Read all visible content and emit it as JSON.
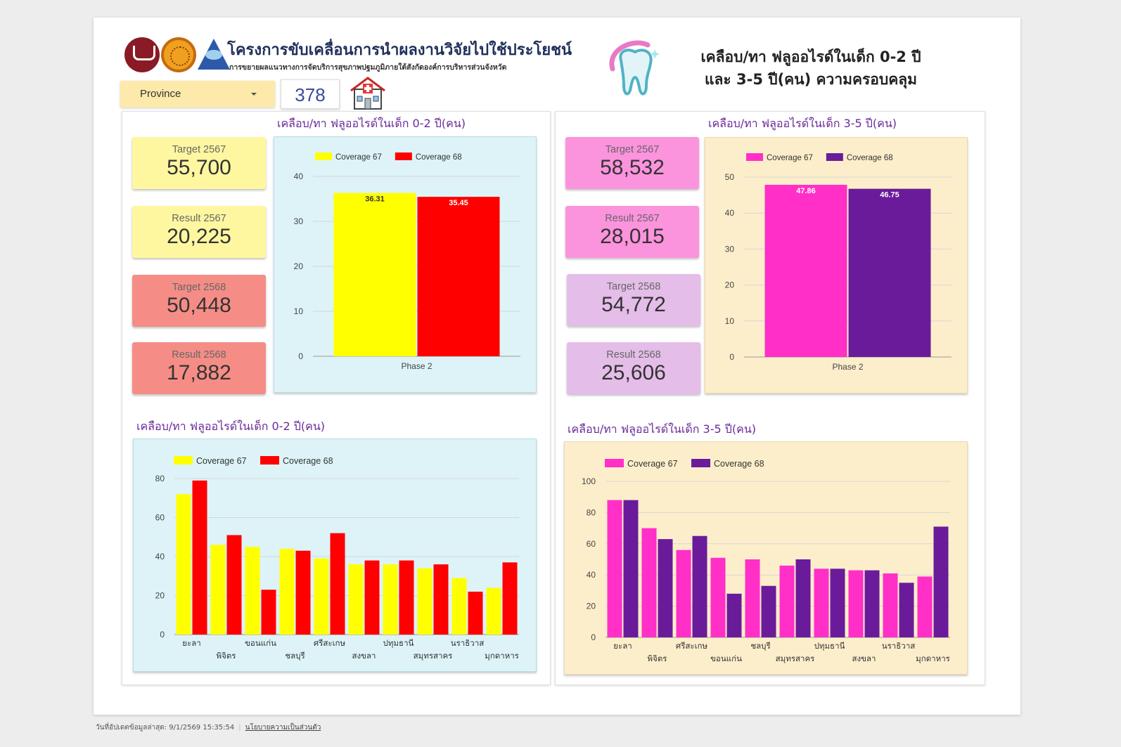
{
  "header": {
    "project_title": "โครงการขับเคลื่อนการนำผลงานวิจัยไปใช้ประโยชน์",
    "project_subtitle": "การขยายผลแนวทางการจัดบริการสุขภาพปฐมภูมิภายใต้สังกัดองค์การบริหารส่วนจังหวัด",
    "main_title_line1": "เคลือบ/ทา ฟลูออไรด์ในเด็ก 0-2 ปี",
    "main_title_line2": "และ 3-5 ปี(คน) ความครอบคลุม",
    "province_label": "Province",
    "count": "378"
  },
  "left_panel": {
    "title": "เคลือบ/ทา ฟลูออไรด์ในเด็ก 0-2 ปี(คน)",
    "cards": [
      {
        "label": "Target 2567",
        "value": "55,700"
      },
      {
        "label": "Result 2567",
        "value": "20,225"
      },
      {
        "label": "Target 2568",
        "value": "50,448"
      },
      {
        "label": "Result 2568",
        "value": "17,882"
      }
    ],
    "bottom_title": "เคลือบ/ทา ฟลูออไรด์ในเด็ก 0-2 ปี(คน)"
  },
  "right_panel": {
    "title": "เคลือบ/ทา ฟลูออไรด์ในเด็ก 3-5 ปี(คน)",
    "cards": [
      {
        "label": "Target 2567",
        "value": "58,532"
      },
      {
        "label": "Result 2567",
        "value": "28,015"
      },
      {
        "label": "Target 2568",
        "value": "54,772"
      },
      {
        "label": "Result 2568",
        "value": "25,606"
      }
    ],
    "bottom_title": "เคลือบ/ทา ฟลูออไรด์ในเด็ก 3-5 ปี(คน)"
  },
  "chart_data": [
    {
      "id": "summary_0_2",
      "type": "bar",
      "categories": [
        "Phase 2"
      ],
      "series": [
        {
          "name": "Coverage 67",
          "color": "#ffff00",
          "values": [
            36.31
          ]
        },
        {
          "name": "Coverage 68",
          "color": "#ff0000",
          "values": [
            35.45
          ]
        }
      ],
      "data_labels": [
        "36.31",
        "35.45"
      ],
      "ylim": [
        0,
        40
      ],
      "yticks": [
        0,
        10,
        20,
        30,
        40
      ],
      "legend": "top"
    },
    {
      "id": "summary_3_5",
      "type": "bar",
      "categories": [
        "Phase 2"
      ],
      "series": [
        {
          "name": "Coverage 67",
          "color": "#ff2fc8",
          "values": [
            47.86
          ]
        },
        {
          "name": "Coverage 68",
          "color": "#6a1b9a",
          "values": [
            46.75
          ]
        }
      ],
      "data_labels": [
        "47.86",
        "46.75"
      ],
      "ylim": [
        0,
        50
      ],
      "yticks": [
        0,
        10,
        20,
        30,
        40,
        50
      ],
      "legend": "top"
    },
    {
      "id": "province_0_2",
      "type": "bar",
      "categories": [
        "ยะลา",
        "พิจิตร",
        "ขอนแก่น",
        "ชลบุรี",
        "ศรีสะเกษ",
        "สงขลา",
        "ปทุมธานี",
        "สมุทรสาคร",
        "นราธิวาส",
        "มุกดาหาร"
      ],
      "series": [
        {
          "name": "Coverage 67",
          "color": "#ffff00",
          "values": [
            72,
            46,
            45,
            44,
            39,
            36,
            36,
            34,
            29,
            24
          ]
        },
        {
          "name": "Coverage 68",
          "color": "#ff0000",
          "values": [
            79,
            51,
            23,
            43,
            52,
            38,
            38,
            36,
            22,
            37
          ]
        }
      ],
      "ylim": [
        0,
        80
      ],
      "yticks": [
        0,
        20,
        40,
        60,
        80
      ],
      "legend": "top-left"
    },
    {
      "id": "province_3_5",
      "type": "bar",
      "categories": [
        "ยะลา",
        "พิจิตร",
        "ศรีสะเกษ",
        "ขอนแก่น",
        "ชลบุรี",
        "สมุทรสาคร",
        "ปทุมธานี",
        "สงขลา",
        "นราธิวาส",
        "มุกดาหาร"
      ],
      "series": [
        {
          "name": "Coverage 67",
          "color": "#ff2fc8",
          "values": [
            88,
            70,
            56,
            51,
            50,
            46,
            44,
            43,
            41,
            39
          ]
        },
        {
          "name": "Coverage 68",
          "color": "#6a1b9a",
          "values": [
            88,
            63,
            65,
            28,
            33,
            50,
            44,
            43,
            35,
            71
          ]
        }
      ],
      "ylim": [
        0,
        100
      ],
      "yticks": [
        0,
        20,
        40,
        60,
        80,
        100
      ],
      "legend": "top-left"
    }
  ],
  "footer": {
    "updated": "วันที่อัปเดตข้อมูลล่าสุด: 9/1/2569 15:35:54",
    "privacy": "นโยบายความเป็นส่วนตัว"
  }
}
